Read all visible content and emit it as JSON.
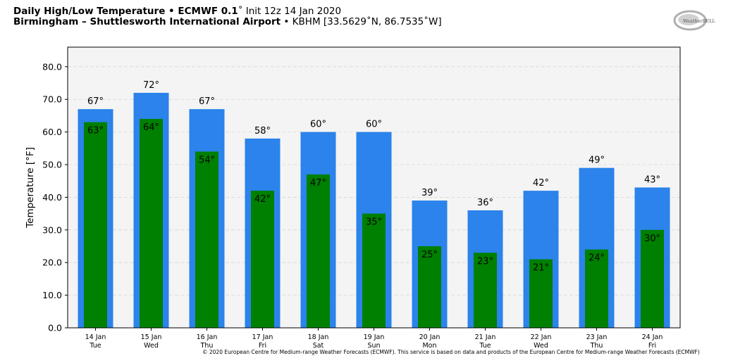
{
  "header": {
    "title_bold": "Daily High/Low Temperature • ECMWF 0.1",
    "title_rest": "˚ Init 12z 14 Jan 2020",
    "subtitle_bold": "Birmingham – Shuttlesworth International Airport",
    "subtitle_rest": " • KBHM [33.5629˚N, 86.7535˚W]"
  },
  "logo": {
    "text": "WeatherBELL",
    "icon": "weatherbell-logo"
  },
  "copyright": "© 2020 European Centre for Medium-range Weather Forecasts (ECMWF). This service is based on data and products of the European Centre for Medium-range Weather Forecasts (ECMWF)",
  "colors": {
    "high": "#2b83eb",
    "low": "#008000",
    "plot_bg": "#f4f4f4",
    "grid": "#d8d8d8"
  },
  "chart_data": {
    "type": "bar",
    "ylabel": "Temperature [°F]",
    "ylim": [
      0,
      86
    ],
    "yticks": [
      "0.0",
      "10.0",
      "20.0",
      "30.0",
      "40.0",
      "50.0",
      "60.0",
      "70.0",
      "80.0"
    ],
    "grid": true,
    "categories": [
      [
        "14 Jan",
        "Tue"
      ],
      [
        "15 Jan",
        "Wed"
      ],
      [
        "16 Jan",
        "Thu"
      ],
      [
        "17 Jan",
        "Fri"
      ],
      [
        "18 Jan",
        "Sat"
      ],
      [
        "19 Jan",
        "Sun"
      ],
      [
        "20 Jan",
        "Mon"
      ],
      [
        "21 Jan",
        "Tue"
      ],
      [
        "22 Jan",
        "Wed"
      ],
      [
        "23 Jan",
        "Thu"
      ],
      [
        "24 Jan",
        "Fri"
      ]
    ],
    "series": [
      {
        "key": "high",
        "values": [
          67,
          72,
          67,
          58,
          60,
          60,
          39,
          36,
          42,
          49,
          43
        ],
        "labels": [
          "67°",
          "72°",
          "67°",
          "58°",
          "60°",
          "60°",
          "39°",
          "36°",
          "42°",
          "49°",
          "43°"
        ]
      },
      {
        "key": "low",
        "values": [
          63,
          64,
          54,
          42,
          47,
          35,
          25,
          23,
          21,
          24,
          30
        ],
        "labels": [
          "63°",
          "64°",
          "54°",
          "42°",
          "47°",
          "35°",
          "25°",
          "23°",
          "21°",
          "24°",
          "30°"
        ]
      }
    ]
  }
}
